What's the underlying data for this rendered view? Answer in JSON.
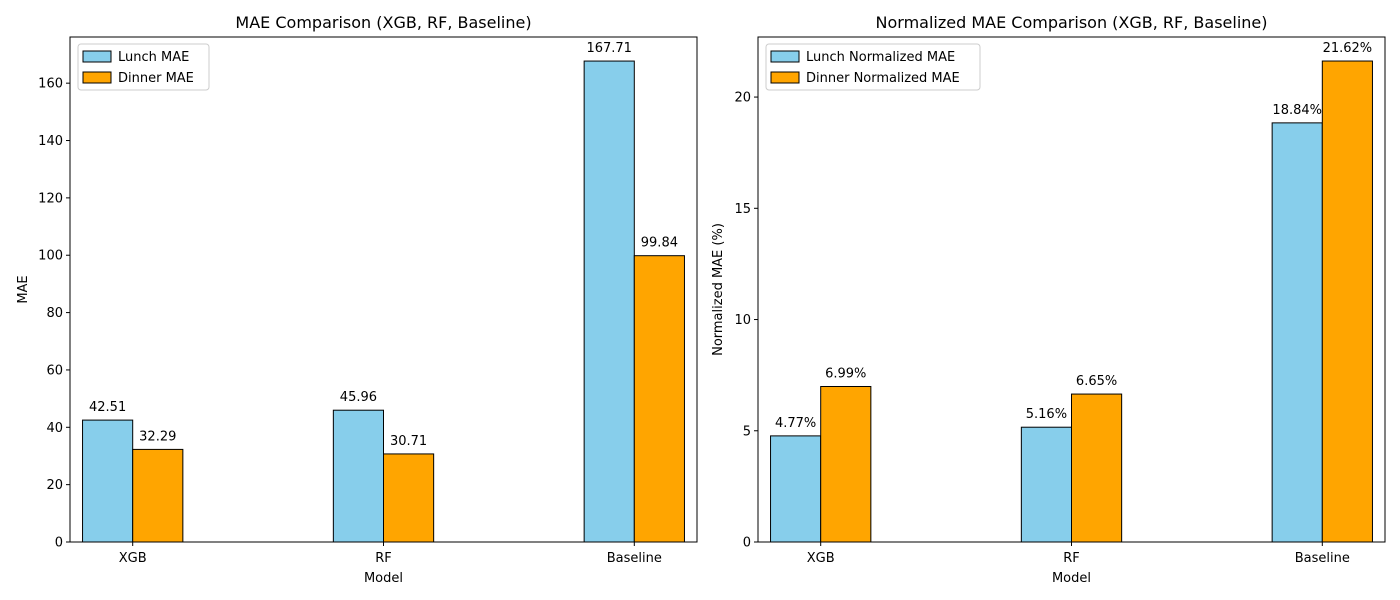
{
  "chart_data": [
    {
      "type": "bar",
      "title": "MAE Comparison (XGB, RF, Baseline)",
      "xlabel": "Model",
      "ylabel": "MAE",
      "categories": [
        "XGB",
        "RF",
        "Baseline"
      ],
      "ylim": [
        0,
        176.1
      ],
      "yticks": [
        0,
        20,
        40,
        60,
        80,
        100,
        120,
        140,
        160
      ],
      "grid": false,
      "legend_position": "top-left",
      "series": [
        {
          "name": "Lunch MAE",
          "color": "#87ceeb",
          "values": [
            42.51,
            45.96,
            167.71
          ],
          "labels": [
            "42.51",
            "45.96",
            "167.71"
          ]
        },
        {
          "name": "Dinner MAE",
          "color": "#ffa500",
          "values": [
            32.29,
            30.71,
            99.84
          ],
          "labels": [
            "32.29",
            "30.71",
            "99.84"
          ]
        }
      ]
    },
    {
      "type": "bar",
      "title": "Normalized MAE Comparison (XGB, RF, Baseline)",
      "xlabel": "Model",
      "ylabel": "Normalized MAE (%)",
      "categories": [
        "XGB",
        "RF",
        "Baseline"
      ],
      "ylim": [
        0,
        22.7
      ],
      "yticks": [
        0,
        5,
        10,
        15,
        20
      ],
      "grid": false,
      "legend_position": "top-left",
      "series": [
        {
          "name": "Lunch Normalized MAE",
          "color": "#87ceeb",
          "values": [
            4.77,
            5.16,
            18.84
          ],
          "labels": [
            "4.77%",
            "5.16%",
            "18.84%"
          ]
        },
        {
          "name": "Dinner Normalized MAE",
          "color": "#ffa500",
          "values": [
            6.99,
            6.65,
            21.62
          ],
          "labels": [
            "6.99%",
            "6.65%",
            "21.62%"
          ]
        }
      ]
    }
  ]
}
